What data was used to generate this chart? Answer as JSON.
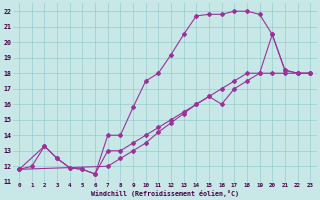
{
  "xlabel": "Windchill (Refroidissement éolien,°C)",
  "xlim": [
    -0.5,
    23.5
  ],
  "ylim": [
    11,
    22.5
  ],
  "xticks": [
    0,
    1,
    2,
    3,
    4,
    5,
    6,
    7,
    8,
    9,
    10,
    11,
    12,
    13,
    14,
    15,
    16,
    17,
    18,
    19,
    20,
    21,
    22,
    23
  ],
  "yticks": [
    11,
    12,
    13,
    14,
    15,
    16,
    17,
    18,
    19,
    20,
    21,
    22
  ],
  "bg_color": "#c8e8e8",
  "grid_color": "#99cccc",
  "line_color": "#993399",
  "line1_x": [
    0,
    1,
    2,
    3,
    4,
    5,
    6,
    7,
    8,
    9,
    10,
    11,
    12,
    13,
    14,
    15,
    16,
    17,
    18,
    19,
    20,
    21,
    22,
    23
  ],
  "line1_y": [
    11.8,
    12.0,
    13.3,
    12.5,
    11.9,
    11.8,
    11.5,
    14.0,
    14.0,
    15.8,
    17.5,
    18.0,
    19.2,
    20.5,
    21.7,
    21.8,
    21.8,
    22.0,
    22.0,
    21.8,
    20.5,
    18.2,
    18.0,
    18.0
  ],
  "line2_x": [
    0,
    2,
    3,
    4,
    5,
    6,
    7,
    8,
    9,
    10,
    11,
    12,
    13,
    14,
    15,
    16,
    17,
    18,
    19,
    20,
    21,
    22,
    23
  ],
  "line2_y": [
    11.8,
    13.3,
    12.5,
    11.9,
    11.8,
    11.5,
    13.0,
    13.0,
    13.5,
    14.0,
    14.5,
    15.0,
    15.5,
    16.0,
    16.5,
    16.0,
    17.0,
    17.5,
    18.0,
    20.5,
    18.2,
    18.0,
    18.0
  ],
  "line3_x": [
    0,
    7,
    8,
    9,
    10,
    11,
    12,
    13,
    14,
    15,
    16,
    17,
    18,
    19,
    20,
    21,
    22,
    23
  ],
  "line3_y": [
    11.8,
    12.0,
    12.5,
    13.0,
    13.5,
    14.2,
    14.8,
    15.4,
    16.0,
    16.5,
    17.0,
    17.5,
    18.0,
    18.0,
    18.0,
    18.0,
    18.0,
    18.0
  ]
}
